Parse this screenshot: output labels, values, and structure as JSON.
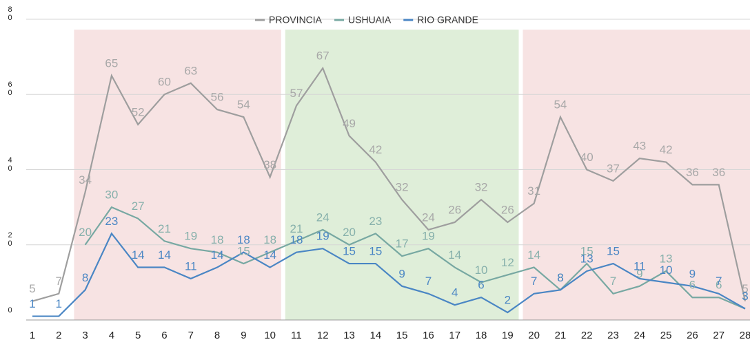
{
  "chart_data": {
    "type": "line",
    "categories": [
      "1",
      "2",
      "3",
      "4",
      "5",
      "6",
      "7",
      "8",
      "9",
      "10",
      "11",
      "12",
      "13",
      "14",
      "15",
      "16",
      "17",
      "18",
      "19",
      "20",
      "21",
      "22",
      "23",
      "24",
      "25",
      "26",
      "27",
      "28"
    ],
    "series": [
      {
        "name": "PROVINCIA",
        "color": "#9e9e9e",
        "values": [
          5,
          7,
          34,
          65,
          52,
          60,
          63,
          56,
          54,
          38,
          57,
          67,
          49,
          42,
          32,
          24,
          26,
          32,
          26,
          31,
          54,
          40,
          37,
          43,
          42,
          36,
          36,
          5
        ]
      },
      {
        "name": "USHUAIA",
        "color": "#77a8a2",
        "values": [
          null,
          null,
          20,
          30,
          27,
          21,
          19,
          18,
          15,
          18,
          21,
          24,
          20,
          23,
          17,
          19,
          14,
          10,
          12,
          14,
          8,
          15,
          7,
          9,
          13,
          6,
          6,
          3
        ]
      },
      {
        "name": "RIO GRANDE",
        "color": "#4a86c4",
        "values": [
          1,
          1,
          8,
          23,
          14,
          14,
          11,
          14,
          18,
          14,
          18,
          19,
          15,
          15,
          9,
          7,
          4,
          6,
          2,
          7,
          8,
          13,
          15,
          11,
          10,
          9,
          7,
          3
        ]
      }
    ],
    "ylim": [
      0,
      80
    ],
    "yticks": [
      0,
      20,
      40,
      60,
      80
    ],
    "grid": true,
    "legend": "top"
  }
}
